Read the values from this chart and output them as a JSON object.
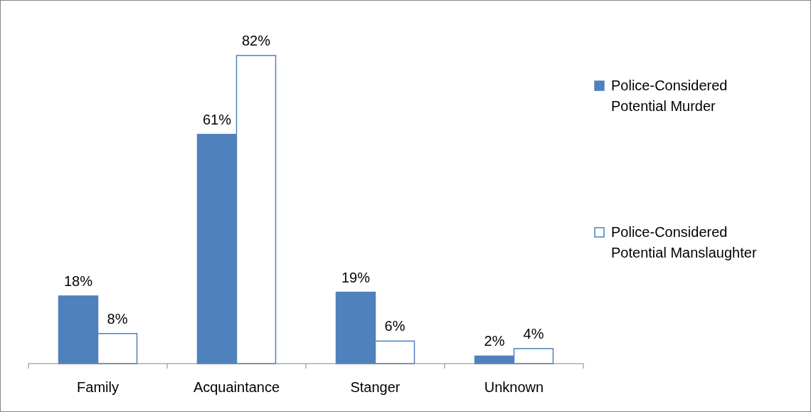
{
  "chart_data": {
    "type": "bar",
    "categories": [
      "Family",
      "Acquaintance",
      "Stanger",
      "Unknown"
    ],
    "series": [
      {
        "name": "Police-Considered Potential Murder",
        "color": "#4f81bd",
        "values": [
          18,
          61,
          19,
          2
        ],
        "value_labels": [
          "18%",
          "61%",
          "19%",
          "2%"
        ]
      },
      {
        "name": "Police-Considered Potential Manslaughter",
        "color": "#ffffff",
        "values": [
          8,
          82,
          6,
          4
        ],
        "value_labels": [
          "8%",
          "82%",
          "6%",
          "4%"
        ]
      }
    ],
    "legend": "right"
  }
}
